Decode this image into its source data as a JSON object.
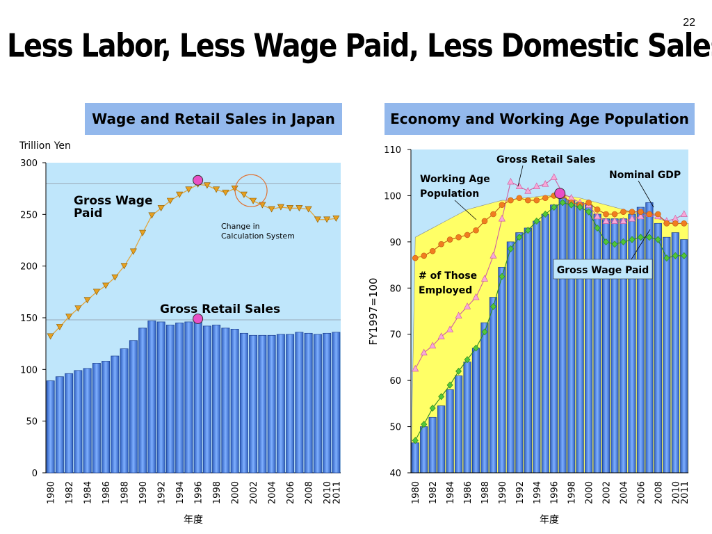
{
  "slide": {
    "page_number": "22",
    "title": "Less Labor, Less Wage Paid, Less Domestic Sales"
  },
  "chart_data": [
    {
      "type": "bar",
      "title": "Wage and Retail Sales in Japan",
      "ylabel": "Trillion Yen",
      "xlabel": "年度",
      "ylim": [
        0,
        300
      ],
      "yticks": [
        "0",
        "50",
        "100",
        "150",
        "200",
        "250",
        "300"
      ],
      "xticks": [
        "1980",
        "1982",
        "1984",
        "1986",
        "1988",
        "1990",
        "1992",
        "1994",
        "1996",
        "1998",
        "2000",
        "2002",
        "2004",
        "2006",
        "2008",
        "2010",
        "2011"
      ],
      "years": [
        1980,
        1981,
        1982,
        1983,
        1984,
        1985,
        1986,
        1987,
        1988,
        1989,
        1990,
        1991,
        1992,
        1993,
        1994,
        1995,
        1996,
        1997,
        1998,
        1999,
        2000,
        2001,
        2002,
        2003,
        2004,
        2005,
        2006,
        2007,
        2008,
        2009,
        2010,
        2011
      ],
      "series": [
        {
          "name": "Gross Retail Sales",
          "kind": "bar",
          "values": [
            89,
            93,
            96,
            99,
            101,
            106,
            108,
            113,
            120,
            128,
            140,
            147,
            146,
            143,
            145,
            146,
            147,
            142,
            143,
            140,
            139,
            135,
            133,
            133,
            133,
            134,
            134,
            136,
            135,
            134,
            135,
            136
          ]
        },
        {
          "name": "Gross Wage Paid",
          "kind": "line",
          "values": [
            132,
            141,
            151,
            159,
            167,
            175,
            181,
            189,
            200,
            214,
            232,
            249,
            256,
            263,
            269,
            274,
            279,
            278,
            274,
            271,
            275,
            269,
            263,
            259,
            255,
            257,
            256,
            256,
            255,
            245,
            245,
            246
          ]
        }
      ],
      "wage_label_line1": "Gross Wage",
      "wage_label_line2": "Paid",
      "retail_label": "Gross Retail Sales",
      "annotation_line1": "Change in",
      "annotation_line2": "Calculation System",
      "markers": [
        {
          "year": 1996,
          "value": 283
        },
        {
          "year": 1996,
          "value": 149
        }
      ],
      "colors": {
        "bar": "#4f86e3",
        "line": "#e0a640",
        "marker": "#e6a020",
        "background": "#bfe6fb",
        "highlight": "#e94fc6",
        "circle": "#e07030"
      }
    },
    {
      "type": "bar",
      "title": "Economy and Working Age Population",
      "ylabel": "FY1997=100",
      "xlabel": "年度",
      "ylim": [
        40,
        110
      ],
      "yticks": [
        "40",
        "50",
        "60",
        "70",
        "80",
        "90",
        "100",
        "110"
      ],
      "xticks": [
        "1980",
        "1982",
        "1984",
        "1986",
        "1988",
        "1990",
        "1992",
        "1994",
        "1996",
        "1998",
        "2000",
        "2002",
        "2004",
        "2006",
        "2008",
        "2010",
        "2011"
      ],
      "years": [
        1980,
        1981,
        1982,
        1983,
        1984,
        1985,
        1986,
        1987,
        1988,
        1989,
        1990,
        1991,
        1992,
        1993,
        1994,
        1995,
        1996,
        1997,
        1998,
        1999,
        2000,
        2001,
        2002,
        2003,
        2004,
        2005,
        2006,
        2007,
        2008,
        2009,
        2010,
        2011
      ],
      "series": [
        {
          "name": "Gross Wage Paid",
          "kind": "bar",
          "values": [
            46.5,
            50,
            52,
            54.5,
            58,
            61,
            64,
            67,
            72.5,
            78,
            84.5,
            90,
            92,
            93,
            94.5,
            96,
            98,
            99.5,
            99,
            98.5,
            98,
            96,
            95,
            95,
            95,
            96,
            97.5,
            98.5,
            94,
            91,
            92,
            90.5
          ]
        },
        {
          "name": "Working Age Population",
          "kind": "area",
          "values": [
            91,
            92,
            93,
            94,
            95,
            96,
            97,
            97.5,
            98,
            98.5,
            99,
            99,
            99.5,
            99.5,
            99.8,
            100,
            100,
            100,
            99.8,
            99.5,
            99,
            98.5,
            98,
            97.5,
            97,
            96.5,
            96,
            95.5,
            95,
            94.5,
            94,
            94
          ]
        },
        {
          "name": "Gross Retail Sales",
          "kind": "line",
          "values": [
            62.5,
            66,
            67.5,
            69.5,
            71,
            74,
            76,
            78,
            82,
            87,
            95,
            103,
            102,
            101,
            102,
            102.5,
            104,
            100.5,
            99.5,
            98.5,
            98,
            95.5,
            94.5,
            94.5,
            94.5,
            95,
            95.5,
            96,
            95.5,
            94.5,
            95,
            96
          ]
        },
        {
          "name": "Nominal GDP",
          "kind": "line",
          "values": [
            86.5,
            87,
            88,
            89.5,
            90.5,
            91,
            91.5,
            92.5,
            94.5,
            96,
            98,
            99,
            99.5,
            99,
            99,
            99.5,
            100,
            100,
            98.5,
            98,
            98.5,
            97,
            96,
            96,
            96.5,
            96.5,
            96.5,
            96,
            96,
            94,
            94,
            94
          ]
        },
        {
          "name": "# of Those Employed",
          "kind": "line",
          "values": [
            47,
            50.5,
            54,
            56.5,
            59,
            62,
            64.5,
            67,
            70.5,
            76,
            82.5,
            88.5,
            91,
            92.5,
            94.5,
            96,
            97.5,
            98.5,
            98,
            97.5,
            96.5,
            93,
            90,
            89.5,
            90,
            90.5,
            91,
            91,
            90.5,
            86.5,
            87,
            87
          ]
        }
      ],
      "labels": {
        "working_age_line1": "Working Age",
        "working_age_line2": "Population",
        "gross_retail": "Gross Retail Sales",
        "nominal_gdp": "Nominal GDP",
        "employed_line1": "# of Those",
        "employed_line2": "Employed",
        "gross_wage": "Gross Wage Paid"
      },
      "markers": [
        {
          "year": 1997,
          "value": 100.5
        }
      ],
      "colors": {
        "bar": "#4f86e3",
        "area": "#ffff66",
        "retail": "#f7a8d8",
        "gdp": "#f07d20",
        "employed": "#53c83a",
        "background": "#bfe6fb",
        "highlight": "#e94fc6"
      }
    }
  ]
}
